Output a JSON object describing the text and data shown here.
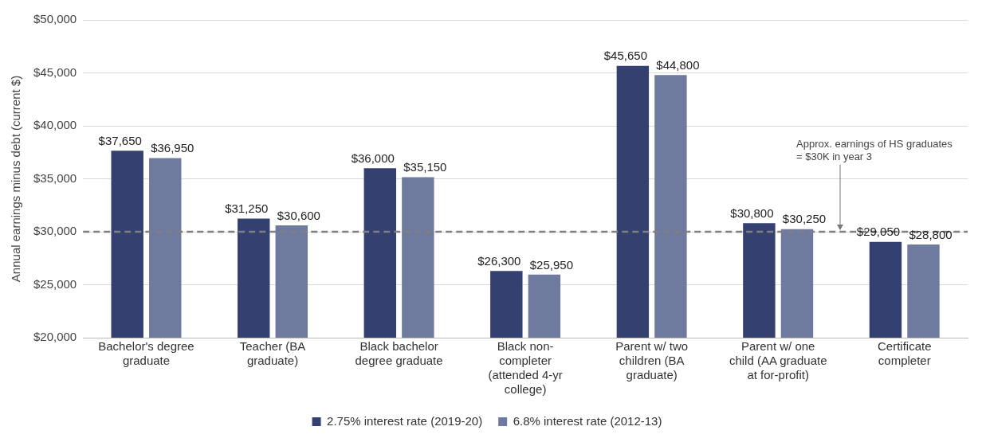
{
  "chart_data": {
    "type": "bar",
    "ylabel": "Annual earnings minus debt (current $)",
    "categories": [
      "Bachelor's degree graduate",
      "Teacher (BA graduate)",
      "Black bachelor degree graduate",
      "Black non-completer (attended 4-yr college)",
      "Parent w/ two children (BA graduate)",
      "Parent w/ one child (AA graduate at for-profit)",
      "Certificate completer"
    ],
    "series": [
      {
        "name": "2.75% interest rate (2019-20)",
        "color": "#344170",
        "values": [
          37650,
          31250,
          36000,
          26300,
          45650,
          30800,
          29050
        ],
        "value_labels": [
          "$37,650",
          "$31,250",
          "$36,000",
          "$26,300",
          "$45,650",
          "$30,800",
          "$29,050"
        ]
      },
      {
        "name": "6.8% interest rate (2012-13)",
        "color": "#6f7a9f",
        "values": [
          36950,
          30600,
          35150,
          25950,
          44800,
          30250,
          28800
        ],
        "value_labels": [
          "$36,950",
          "$30,600",
          "$35,150",
          "$25,950",
          "$44,800",
          "$30,250",
          "$28,800"
        ]
      }
    ],
    "ylim": [
      20000,
      50000
    ],
    "yticks": [
      {
        "value": 20000,
        "label": "$20,000"
      },
      {
        "value": 25000,
        "label": "$25,000"
      },
      {
        "value": 30000,
        "label": "$30,000"
      },
      {
        "value": 35000,
        "label": "$35,000"
      },
      {
        "value": 40000,
        "label": "$40,000"
      },
      {
        "value": 45000,
        "label": "$45,000"
      },
      {
        "value": 50000,
        "label": "$50,000"
      }
    ],
    "grid": "y",
    "legend": "bottom",
    "ref_lines": [
      {
        "axis": "y",
        "value": 30000,
        "label": "Approx. earnings of HS graduates = $30K in year 3",
        "color": "#808080",
        "line_style": "dashed"
      }
    ]
  }
}
